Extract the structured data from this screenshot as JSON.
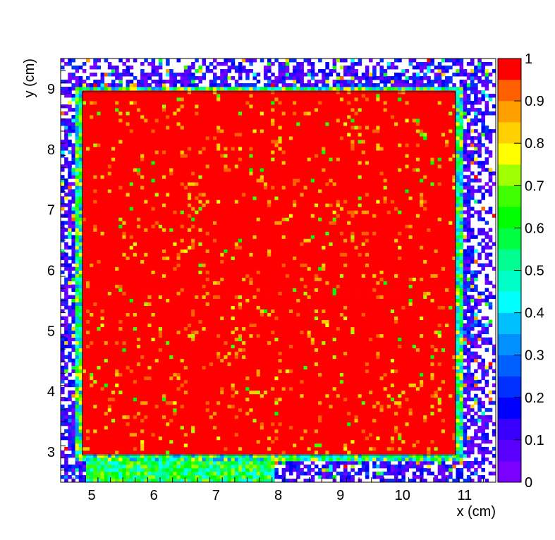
{
  "chart_data": {
    "type": "heatmap",
    "title": "",
    "xlabel": "x (cm)",
    "ylabel": "y (cm)",
    "xlim": [
      4.5,
      11.5
    ],
    "ylim": [
      2.5,
      9.5
    ],
    "zlim": [
      0,
      1
    ],
    "x_ticks": [
      "5",
      "6",
      "7",
      "8",
      "9",
      "10",
      "11"
    ],
    "y_ticks": [
      "3",
      "4",
      "5",
      "6",
      "7",
      "8",
      "9"
    ],
    "z_ticks": [
      "0",
      "0.1",
      "0.2",
      "0.3",
      "0.4",
      "0.5",
      "0.6",
      "0.7",
      "0.8",
      "0.9",
      "1"
    ],
    "grid": false,
    "palette_levels": 20,
    "colormap": [
      "#7a00ff",
      "#5a00ff",
      "#3a00ff",
      "#0000ff",
      "#0030ff",
      "#0060ff",
      "#0090ff",
      "#00c0ff",
      "#00ffff",
      "#00ffc8",
      "#00ff90",
      "#00ff40",
      "#00ff00",
      "#40ff00",
      "#a0ff00",
      "#ffff00",
      "#ffd000",
      "#ffa000",
      "#ff6000",
      "#ff0000"
    ],
    "regions": [
      {
        "name": "active-area",
        "x": [
          4.85,
          10.85
        ],
        "y": [
          2.95,
          8.95
        ],
        "value": 0.97
      },
      {
        "name": "active-area-edge",
        "x": [
          4.75,
          10.95
        ],
        "y": [
          2.85,
          9.05
        ],
        "value": 0.45
      },
      {
        "name": "lower-left-strip",
        "x": [
          4.9,
          7.95
        ],
        "y": [
          2.5,
          2.9
        ],
        "value": 0.55
      },
      {
        "name": "surrounding-halo",
        "x": [
          4.5,
          11.5
        ],
        "y": [
          2.5,
          9.5
        ],
        "value": 0.12
      }
    ],
    "outline_box": {
      "x": [
        4.85,
        10.85
      ],
      "y": [
        2.95,
        8.95
      ]
    }
  }
}
